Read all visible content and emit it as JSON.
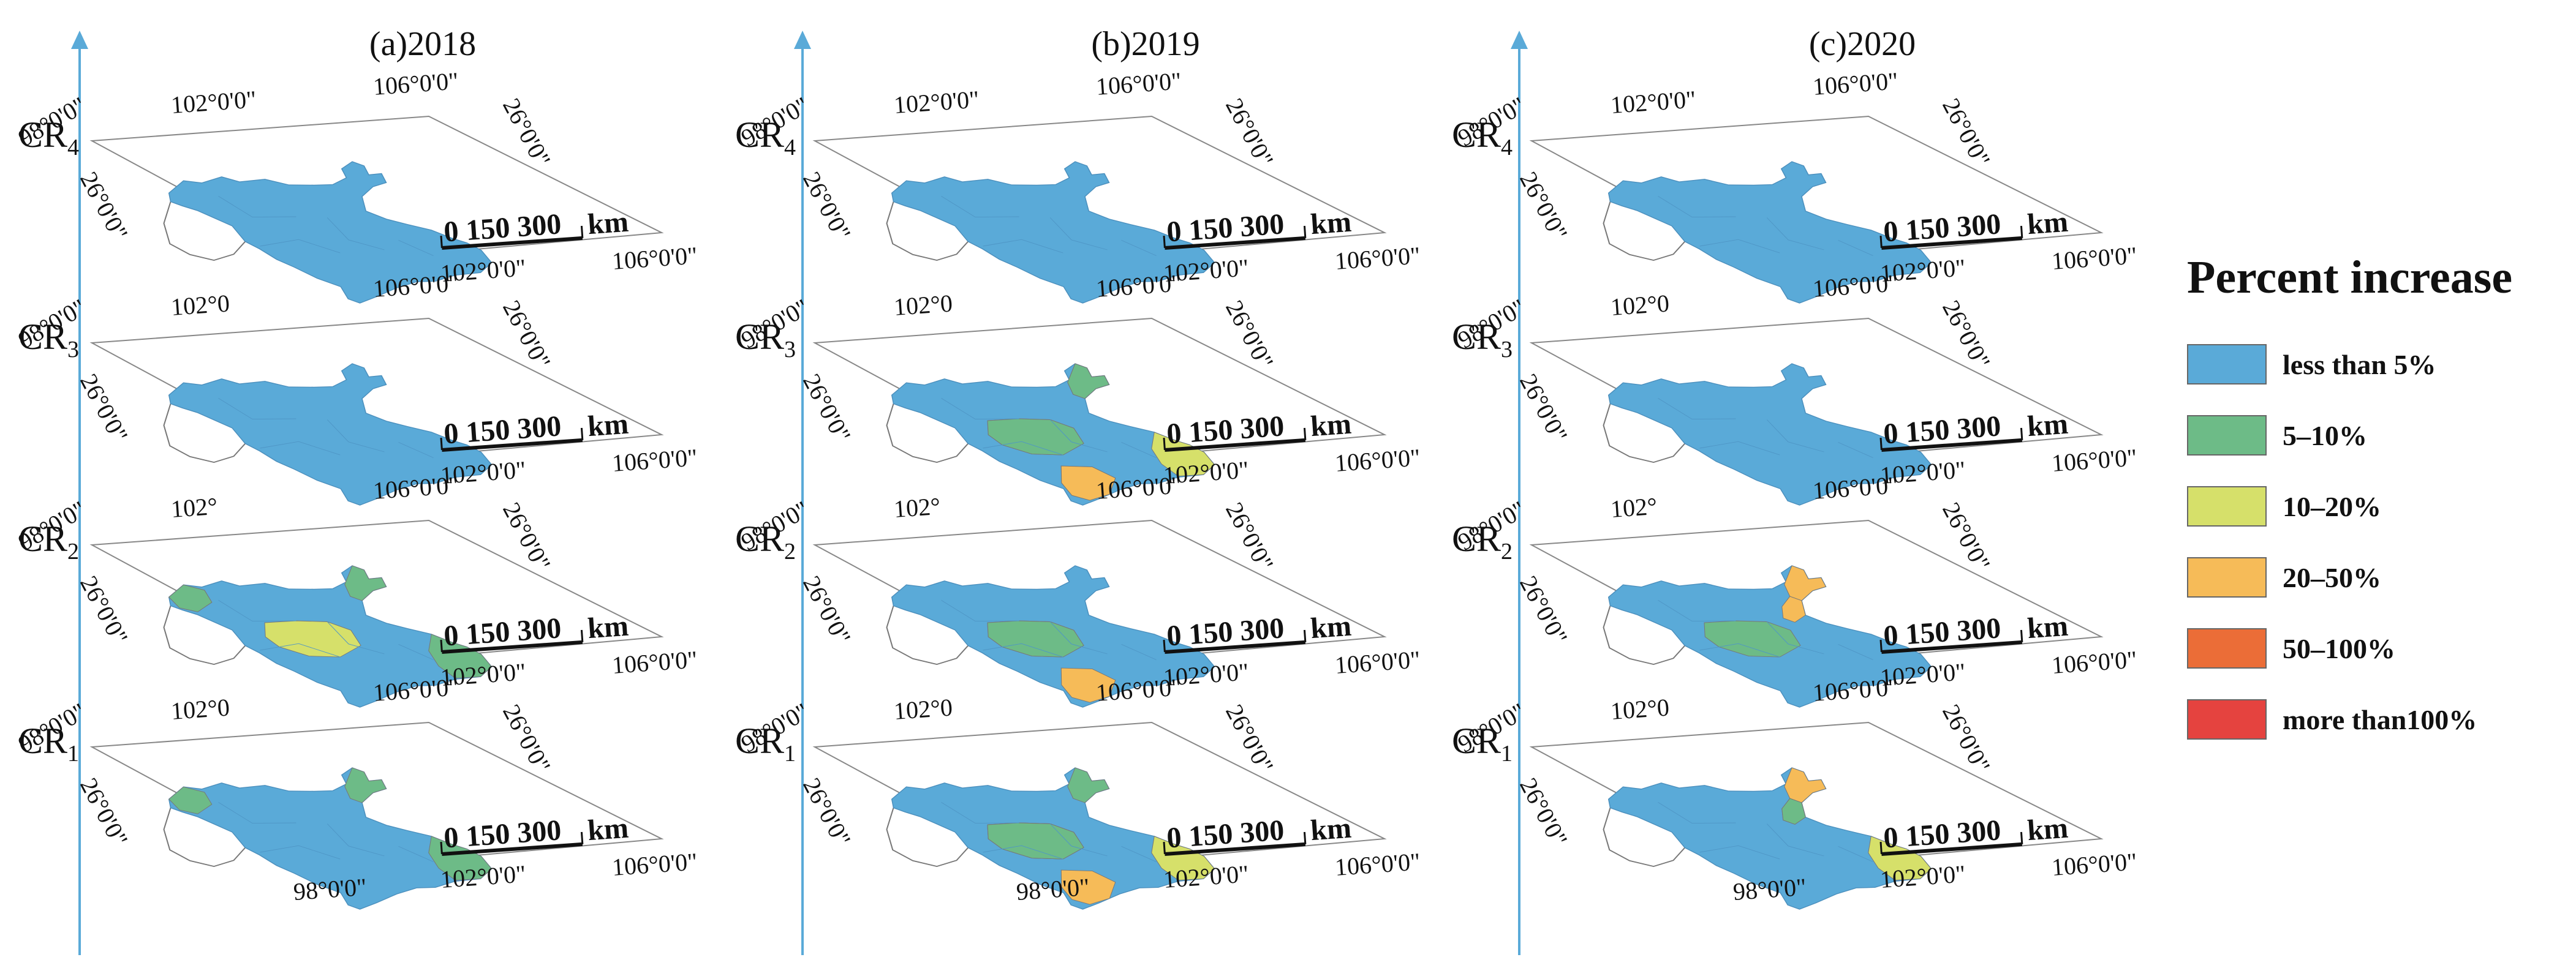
{
  "colors": {
    "less_than_5": "#5aaad8",
    "p5_10": "#6dbb87",
    "p10_20": "#d6e06a",
    "p20_50": "#f6bb58",
    "p50_100": "#eb6d37",
    "more_than_100": "#e5433f",
    "axis": "#5aaad8",
    "frame": "#888888"
  },
  "panels": [
    {
      "title": "(a)2018",
      "layers": [
        {
          "label": "CR",
          "sub": "4",
          "patches": []
        },
        {
          "label": "CR",
          "sub": "3",
          "patches": []
        },
        {
          "label": "CR",
          "sub": "2",
          "patches": [
            "p5_10-north",
            "p10_20-west",
            "p5_10-west",
            "p10_20-center",
            "p5_10-east"
          ]
        },
        {
          "label": "CR",
          "sub": "1",
          "patches": [
            "p5_10-west",
            "p5_10-east",
            "p5_10-north"
          ]
        }
      ]
    },
    {
      "title": "(b)2019",
      "layers": [
        {
          "label": "CR",
          "sub": "4",
          "patches": []
        },
        {
          "label": "CR",
          "sub": "3",
          "patches": [
            "p10_20-north",
            "p5_10-north",
            "p10_20-center",
            "p10_20-east",
            "p10_20-south",
            "p20_50-south",
            "p5_10-center"
          ]
        },
        {
          "label": "CR",
          "sub": "2",
          "patches": [
            "p10_20-center",
            "p20_50-south",
            "p5_10-center"
          ]
        },
        {
          "label": "CR",
          "sub": "1",
          "patches": [
            "p5_10-north",
            "p10_20-center",
            "p20_50-center",
            "p10_20-east",
            "p20_50-south",
            "p5_10-center"
          ]
        }
      ]
    },
    {
      "title": "(c)2020",
      "layers": [
        {
          "label": "CR",
          "sub": "4",
          "patches": []
        },
        {
          "label": "CR",
          "sub": "3",
          "patches": []
        },
        {
          "label": "CR",
          "sub": "2",
          "patches": [
            "p20_50-north",
            "p20_50-neck",
            "p5_10-center"
          ]
        },
        {
          "label": "CR",
          "sub": "1",
          "patches": [
            "p20_50-north",
            "p10_20-neck",
            "p5_10-neck",
            "p10_20-east"
          ]
        }
      ]
    }
  ],
  "map_labels": {
    "lon_102_top": "102°0'0\"",
    "lon_102_top_short": "102°0",
    "lon_102_top_deg": "102°",
    "lon_106_top": "106°0'0\"",
    "lat_26_right": "26°0'0\"",
    "lat_26_left": "26°0'0\"",
    "lat_98_left": "98°0'0\"",
    "lon_98_bottom": "98°0'0\"",
    "lon_102_bottom": "102°0'0\"",
    "lon_106_bottom": "106°0'0\"",
    "scale_ticks": "0   150 300",
    "scale_unit": "km"
  },
  "legend": {
    "title": "Percent increase",
    "items": [
      {
        "label": "less than 5%",
        "color_key": "less_than_5"
      },
      {
        "label": "5–10%",
        "color_key": "p5_10"
      },
      {
        "label": "10–20%",
        "color_key": "p10_20"
      },
      {
        "label": "20–50%",
        "color_key": "p20_50"
      },
      {
        "label": "50–100%",
        "color_key": "p50_100"
      },
      {
        "label": "more than100%",
        "color_key": "more_than_100"
      }
    ]
  }
}
